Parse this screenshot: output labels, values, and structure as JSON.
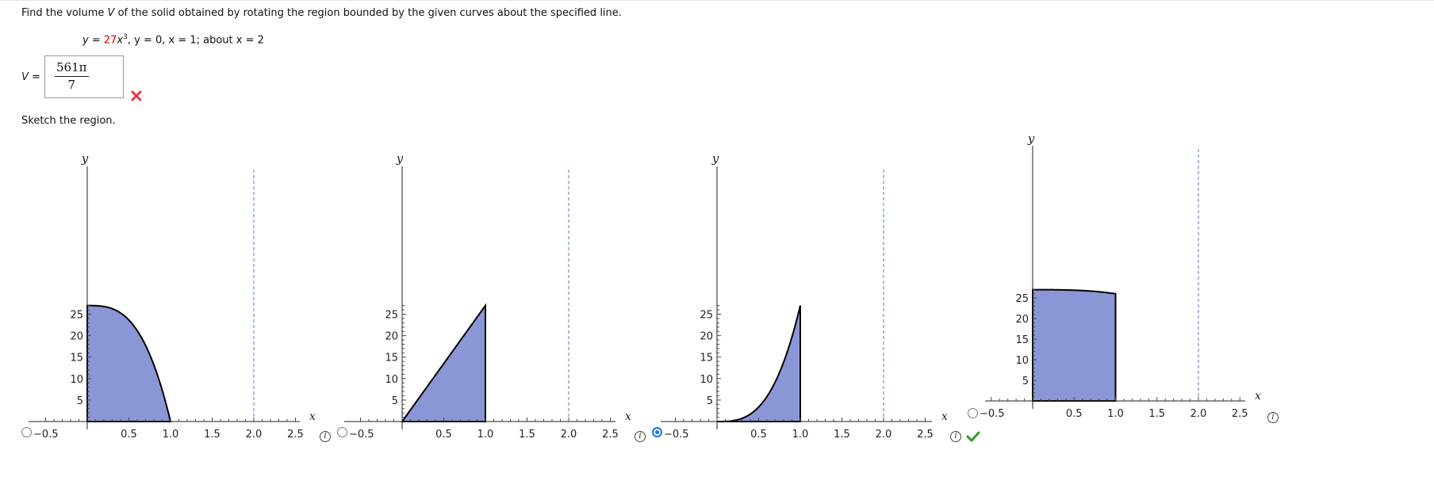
{
  "question": {
    "prefix": "Find the volume ",
    "var": "V",
    "suffix": " of the solid obtained by rotating the region bounded by the given curves about the specified line."
  },
  "equation": {
    "y1": "y",
    "eq1": " = ",
    "coef": "27",
    "x": "x",
    "exp": "3",
    "rest1": ",  y = 0,  x = 1;  about x = 2"
  },
  "answer": {
    "label_var": "V",
    "label_eq": " =",
    "numerator": "561π",
    "denominator": "7",
    "status": "incorrect"
  },
  "sketch_label": "Sketch the region.",
  "graphs": [
    {
      "id": "A",
      "shape": "decreasing-cubic",
      "selected": false,
      "y_ticks": [
        "25",
        "20",
        "15",
        "10",
        "5"
      ],
      "x_ticks": [
        "0.5",
        "1.0",
        "1.5",
        "2.0",
        "2.5"
      ],
      "neg_label": "−0.5",
      "x_axis_label": "x",
      "y_axis_label": "y",
      "dashed_line_x": 2
    },
    {
      "id": "B",
      "shape": "linear",
      "selected": false,
      "y_ticks": [
        "25",
        "20",
        "15",
        "10",
        "5"
      ],
      "x_ticks": [
        "0.5",
        "1.0",
        "1.5",
        "2.0",
        "2.5"
      ],
      "neg_label": "−0.5",
      "x_axis_label": "x",
      "y_axis_label": "y",
      "dashed_line_x": 2
    },
    {
      "id": "C",
      "shape": "increasing-cubic",
      "selected": true,
      "status": "correct",
      "y_ticks": [
        "25",
        "20",
        "15",
        "10",
        "5"
      ],
      "x_ticks": [
        "0.5",
        "1.0",
        "1.5",
        "2.0",
        "2.5"
      ],
      "neg_label": "−0.5",
      "x_axis_label": "x",
      "y_axis_label": "y",
      "dashed_line_x": 2
    },
    {
      "id": "D",
      "shape": "flat-top",
      "selected": false,
      "y_ticks": [
        "25",
        "20",
        "15",
        "10",
        "5"
      ],
      "x_ticks": [
        "0.5",
        "1.0",
        "1.5",
        "2.0",
        "2.5"
      ],
      "neg_label": "−0.5",
      "x_axis_label": "x",
      "y_axis_label": "y",
      "dashed_line_x": 2
    }
  ],
  "colors": {
    "fill": "#8b96d6",
    "dashed": "#4a7fd0",
    "incorrect": "#e8344a",
    "correct": "#2aa033",
    "radio_selected": "#1a73e8"
  },
  "icons": {
    "incorrect": "x-mark-icon",
    "correct": "check-mark-icon",
    "info": "info-icon"
  },
  "info_glyph": "i"
}
